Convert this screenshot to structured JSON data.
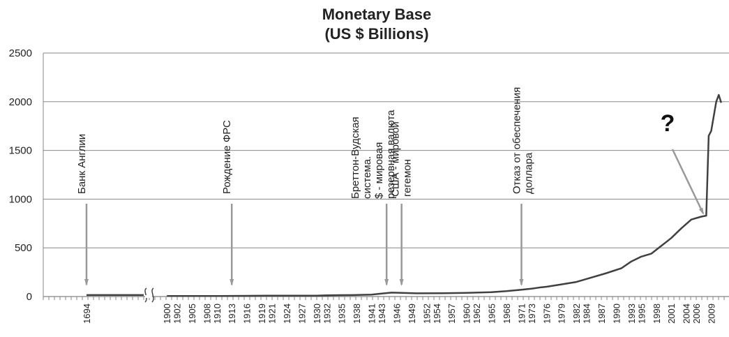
{
  "chart_data": {
    "type": "line",
    "title_lines": [
      "Monetary Base",
      "(US $ Billions)"
    ],
    "ylim": [
      0,
      2500
    ],
    "y_ticks": [
      "0",
      "500",
      "1000",
      "1500",
      "2000",
      "2500"
    ],
    "grid": true,
    "x_tick_labels": [
      "1694",
      "1900",
      "1902",
      "1905",
      "1908",
      "1910",
      "1913",
      "1916",
      "1919",
      "1921",
      "1924",
      "1927",
      "1930",
      "1932",
      "1935",
      "1938",
      "1941",
      "1943",
      "1946",
      "1949",
      "1952",
      "1954",
      "1957",
      "1960",
      "1962",
      "1965",
      "1968",
      "1971",
      "1973",
      "1976",
      "1979",
      "1982",
      "1984",
      "1987",
      "1990",
      "1993",
      "1995",
      "1998",
      "2001",
      "2004",
      "2006",
      "2009"
    ],
    "series": [
      {
        "color": "#404040",
        "points": [
          [
            1694,
            15
          ],
          [
            1900,
            5
          ],
          [
            1910,
            6
          ],
          [
            1916,
            7
          ],
          [
            1920,
            9
          ],
          [
            1925,
            9
          ],
          [
            1930,
            9
          ],
          [
            1932,
            12
          ],
          [
            1935,
            14
          ],
          [
            1938,
            16
          ],
          [
            1941,
            20
          ],
          [
            1943,
            30
          ],
          [
            1945,
            40
          ],
          [
            1947,
            38
          ],
          [
            1950,
            33
          ],
          [
            1955,
            34
          ],
          [
            1960,
            38
          ],
          [
            1965,
            45
          ],
          [
            1968,
            55
          ],
          [
            1971,
            70
          ],
          [
            1973,
            80
          ],
          [
            1975,
            95
          ],
          [
            1976,
            100
          ],
          [
            1979,
            125
          ],
          [
            1982,
            150
          ],
          [
            1985,
            195
          ],
          [
            1988,
            240
          ],
          [
            1991,
            290
          ],
          [
            1993,
            360
          ],
          [
            1995,
            410
          ],
          [
            1997,
            440
          ],
          [
            1999,
            520
          ],
          [
            2000,
            560
          ],
          [
            2001,
            600
          ],
          [
            2003,
            700
          ],
          [
            2005,
            790
          ],
          [
            2007,
            820
          ],
          [
            2008,
            830
          ],
          [
            2008.5,
            1650
          ],
          [
            2009,
            1700
          ],
          [
            2009.5,
            1850
          ],
          [
            2010,
            2000
          ],
          [
            2010.5,
            2070
          ],
          [
            2011,
            1990
          ]
        ]
      }
    ],
    "annotations": [
      {
        "text_lines": [
          "Банк Англии"
        ],
        "arrow_x": 1694
      },
      {
        "text_lines": [
          "Рождение ФРС"
        ],
        "arrow_x": 1913
      },
      {
        "text_lines": [
          "Бреттон-Вудская",
          "система.",
          "$ - мировая",
          "резервная валюта"
        ],
        "arrow_x": 1944
      },
      {
        "text_lines": [
          "США - мировой",
          "гегемон"
        ],
        "arrow_x": 1947
      },
      {
        "text_lines": [
          "Отказ от обеспечения",
          "доллара"
        ],
        "arrow_x": 1971
      }
    ],
    "callout": {
      "text": "?"
    }
  }
}
